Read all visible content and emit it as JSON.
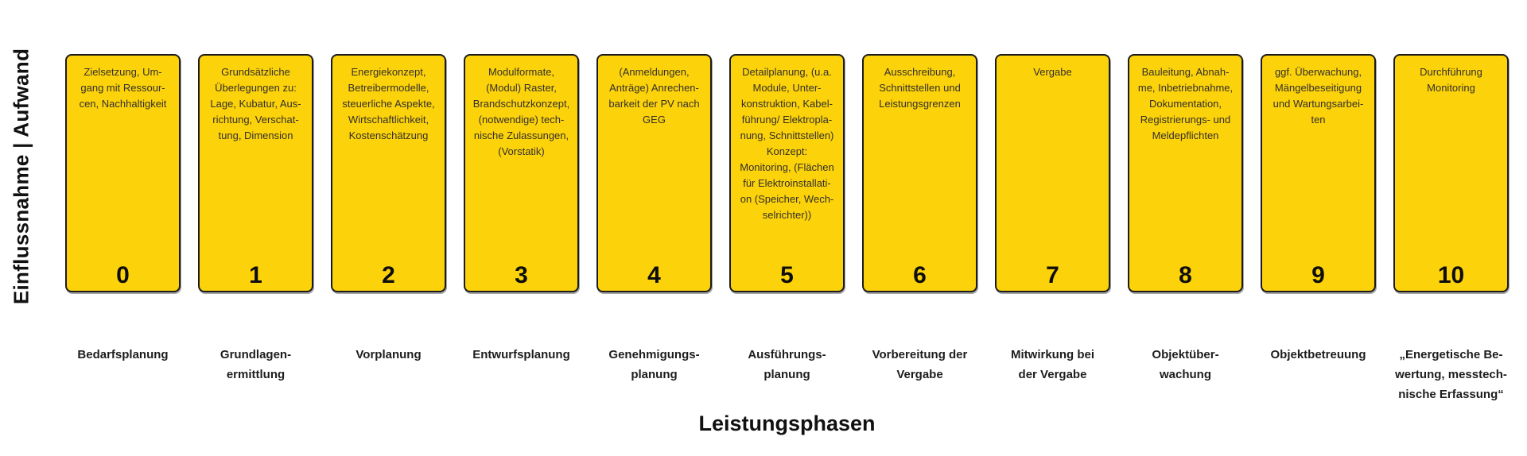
{
  "figure": {
    "y_axis_label": "Einflussnahme | Aufwand",
    "x_axis_title": "Leistungsphasen",
    "colors": {
      "box_fill": "#FCD20A",
      "box_border": "#1B1B1B",
      "description_text": "#33302B",
      "number_text": "#0D0D0D"
    }
  },
  "phases": [
    {
      "number": "0",
      "description": "Zielsetzung, Um-\ngang mit Ressour-\ncen, Nachhaltigkeit",
      "label": "Bedarfsplanung"
    },
    {
      "number": "1",
      "description": "Grundsätzliche\nÜberlegungen zu:\nLage, Kubatur, Aus-\nrichtung, Verschat-\ntung, Dimension",
      "label": "Grundlagen-\nermittlung"
    },
    {
      "number": "2",
      "description": "Energiekonzept,\nBetreibermodelle,\nsteuerliche Aspekte,\nWirtschaftlichkeit,\nKostenschätzung",
      "label": "Vorplanung"
    },
    {
      "number": "3",
      "description": "Modulformate,\n(Modul) Raster,\nBrandschutzkonzept,\n(notwendige) tech-\nnische Zulassungen,\n(Vorstatik)",
      "label": "Entwurfsplanung"
    },
    {
      "number": "4",
      "description": "(Anmeldungen,\nAnträge) Anrechen-\nbarkeit der PV nach\nGEG",
      "label": "Genehmigungs-\nplanung"
    },
    {
      "number": "5",
      "description": "Detailplanung, (u.a.\nModule, Unter-\nkonstruktion, Kabel-\nführung/ Elektropla-\nnung, Schnittstellen)\nKonzept:\nMonitoring, (Flächen\nfür Elektroinstallati-\non (Speicher, Wech-\nselrichter))",
      "label": "Ausführungs-\nplanung"
    },
    {
      "number": "6",
      "description": "Ausschreibung,\nSchnittstellen und\nLeistungsgrenzen",
      "label": "Vorbereitung der\nVergabe"
    },
    {
      "number": "7",
      "description": "Vergabe",
      "label": "Mitwirkung bei\nder Vergabe"
    },
    {
      "number": "8",
      "description": "Bauleitung, Abnah-\nme, Inbetriebnahme,\nDokumentation,\nRegistrierungs- und\nMeldepflichten",
      "label": "Objektüber-\nwachung"
    },
    {
      "number": "9",
      "description": "ggf. Überwachung,\nMängelbeseitigung\nund Wartungsarbei-\nten",
      "label": "Objektbetreuung"
    },
    {
      "number": "10",
      "description": "Durchführung\nMonitoring",
      "label": "„Energetische Be-\nwertung, messtech-\nnische Erfassung“"
    }
  ]
}
